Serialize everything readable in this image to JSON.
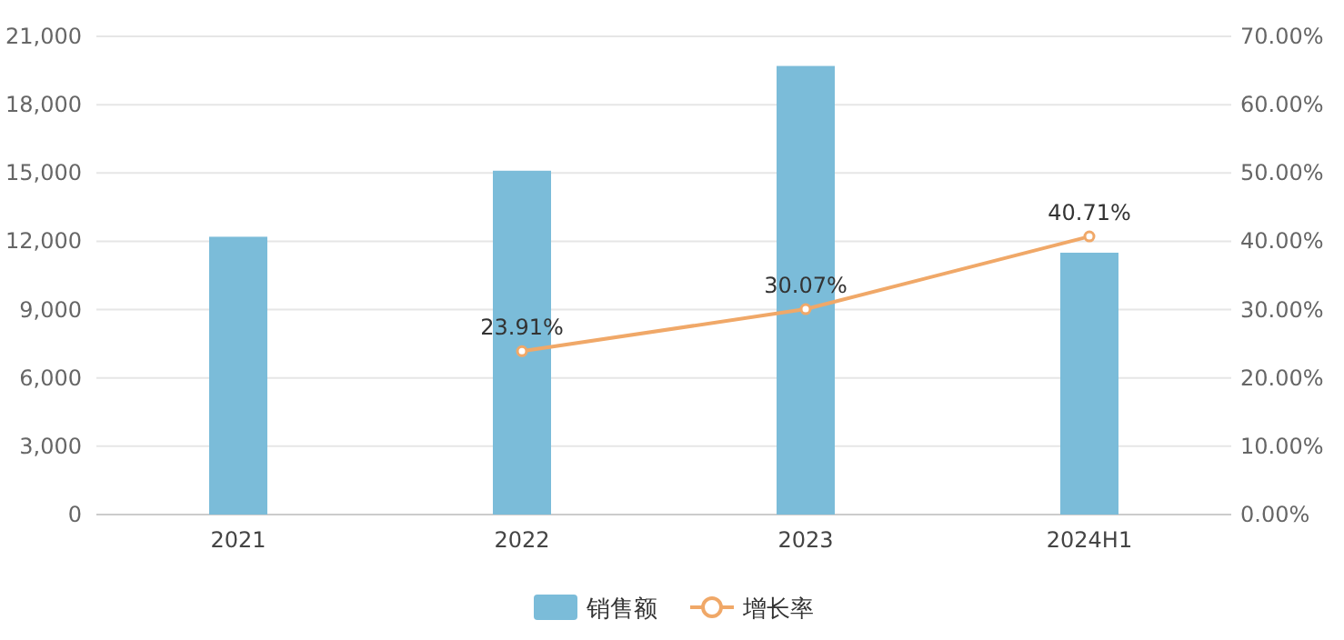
{
  "chart_data": {
    "type": "bar",
    "categories": [
      "2021",
      "2022",
      "2023",
      "2024H1"
    ],
    "series": [
      {
        "name": "销售额",
        "color": "#7bbcd9",
        "values": [
          12200,
          15100,
          19700,
          11500
        ]
      },
      {
        "name": "增长率",
        "type": "line",
        "axis": "y2",
        "color": "#f0a868",
        "marker": "circle",
        "values": [
          null,
          23.91,
          30.07,
          40.71
        ],
        "value_labels": [
          null,
          "23.91%",
          "30.07%",
          "40.71%"
        ]
      }
    ],
    "ylim": [
      0,
      21000
    ],
    "yticks": [
      {
        "value": 0,
        "label": "0"
      },
      {
        "value": 3000,
        "label": "3,000"
      },
      {
        "value": 6000,
        "label": "6,000"
      },
      {
        "value": 9000,
        "label": "9,000"
      },
      {
        "value": 12000,
        "label": "12,000"
      },
      {
        "value": 15000,
        "label": "15,000"
      },
      {
        "value": 18000,
        "label": "18,000"
      },
      {
        "value": 21000,
        "label": "21,000"
      }
    ],
    "y2lim": [
      0,
      70
    ],
    "y2ticks": [
      {
        "value": 0,
        "label": "0.00%"
      },
      {
        "value": 10,
        "label": "10.00%"
      },
      {
        "value": 20,
        "label": "20.00%"
      },
      {
        "value": 30,
        "label": "30.00%"
      },
      {
        "value": 40,
        "label": "40.00%"
      },
      {
        "value": 50,
        "label": "50.00%"
      },
      {
        "value": 60,
        "label": "60.00%"
      },
      {
        "value": 70,
        "label": "70.00%"
      }
    ],
    "grid": "y",
    "legend": "bottom"
  }
}
